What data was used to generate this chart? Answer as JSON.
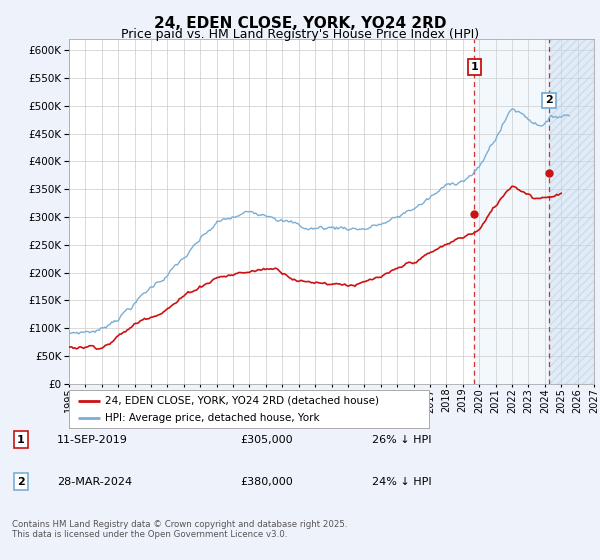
{
  "title": "24, EDEN CLOSE, YORK, YO24 2RD",
  "subtitle": "Price paid vs. HM Land Registry's House Price Index (HPI)",
  "title_fontsize": 11,
  "subtitle_fontsize": 9,
  "ylim": [
    0,
    620000
  ],
  "yticks": [
    0,
    50000,
    100000,
    150000,
    200000,
    250000,
    300000,
    350000,
    400000,
    450000,
    500000,
    550000,
    600000
  ],
  "background_color": "#eef2fa",
  "plot_bg_color": "#ffffff",
  "hpi_color": "#7aaed6",
  "price_color": "#cc1111",
  "vline_color": "#cc1111",
  "shade_color": "#d0e4f7",
  "hatch_color": "#c8d8e8",
  "legend_entries": [
    "24, EDEN CLOSE, YORK, YO24 2RD (detached house)",
    "HPI: Average price, detached house, York"
  ],
  "note1_date": "11-SEP-2019",
  "note1_price": "£305,000",
  "note1_hpi": "26% ↓ HPI",
  "note2_date": "28-MAR-2024",
  "note2_price": "£380,000",
  "note2_hpi": "24% ↓ HPI",
  "footnote": "Contains HM Land Registry data © Crown copyright and database right 2025.\nThis data is licensed under the Open Government Licence v3.0.",
  "xmin": 1995,
  "xmax": 2027,
  "xtick_years": [
    1995,
    1996,
    1997,
    1998,
    1999,
    2000,
    2001,
    2002,
    2003,
    2004,
    2005,
    2006,
    2007,
    2008,
    2009,
    2010,
    2011,
    2012,
    2013,
    2014,
    2015,
    2016,
    2017,
    2018,
    2019,
    2020,
    2021,
    2022,
    2023,
    2024,
    2025,
    2026,
    2027
  ],
  "sale1_x": 2019.708,
  "sale1_y": 305000,
  "sale2_x": 2024.25,
  "sale2_y": 380000
}
